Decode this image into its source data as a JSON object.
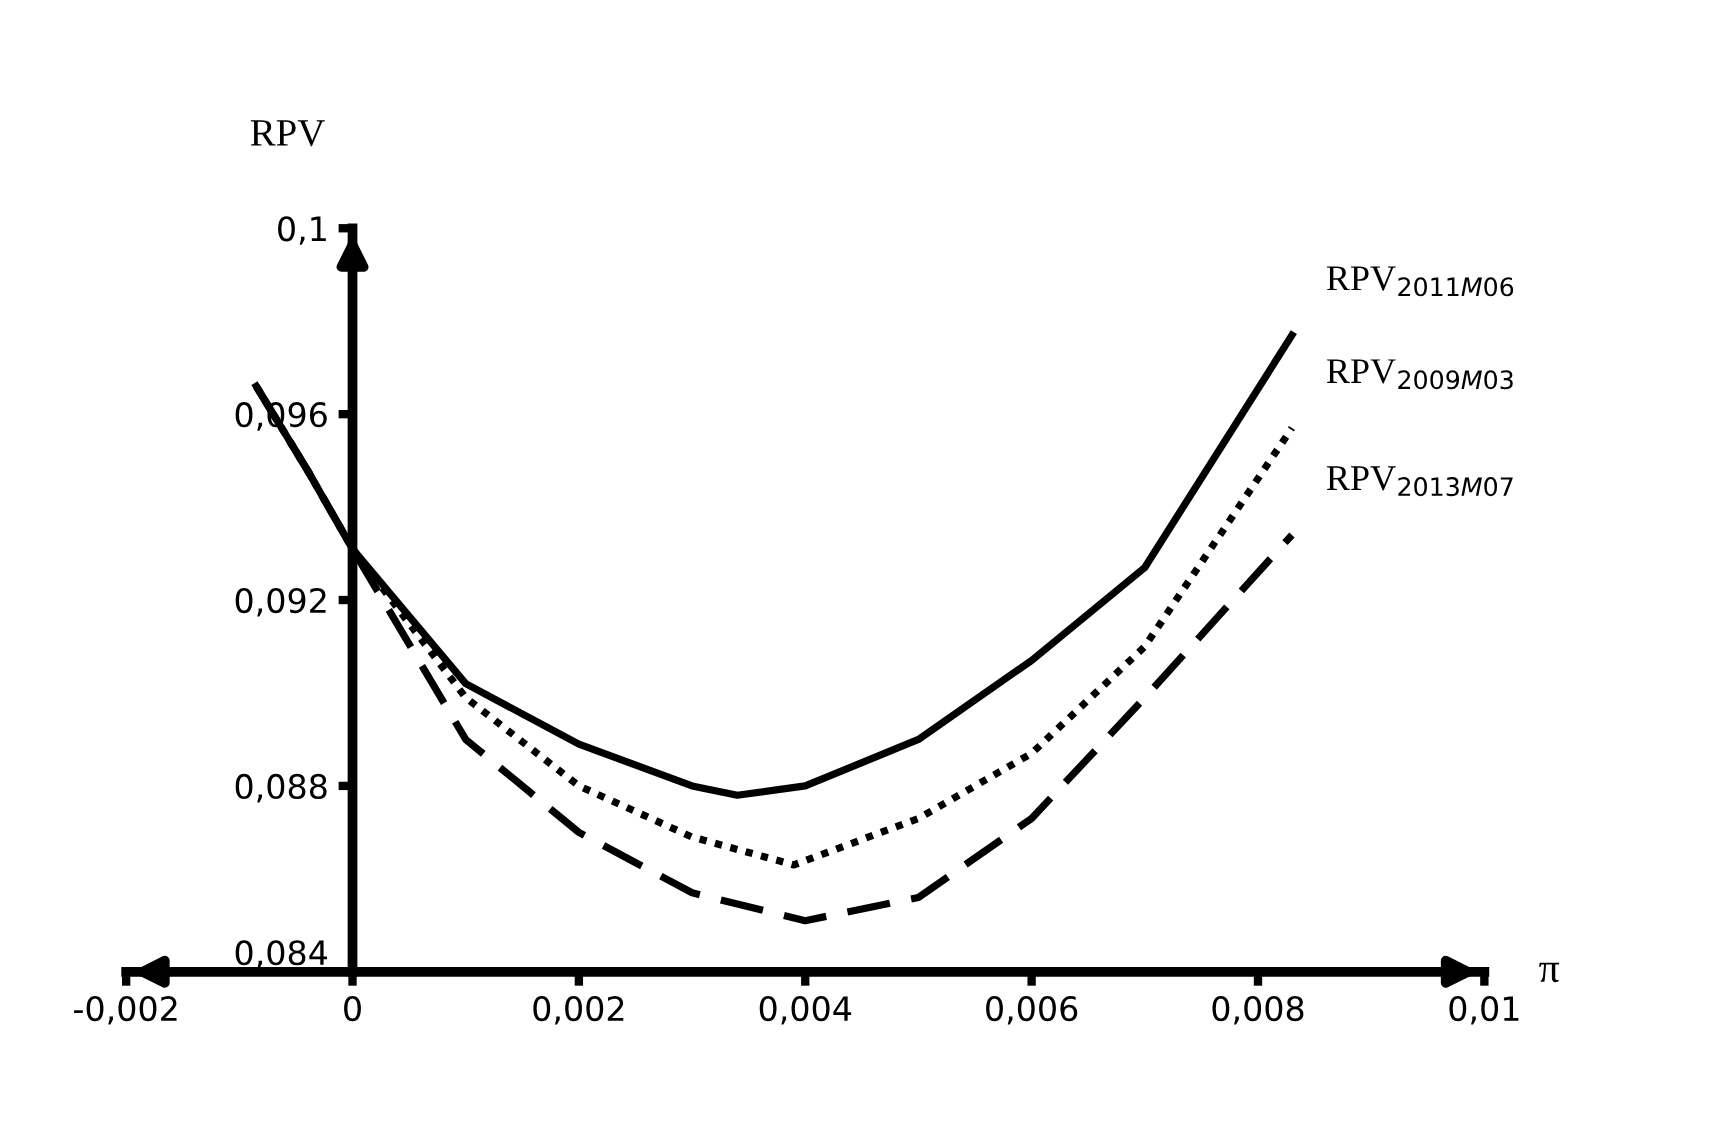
{
  "chart_data": {
    "type": "line",
    "xlabel": "π",
    "ylabel": "RPV",
    "xlim": [
      -0.002,
      0.01
    ],
    "ylim": [
      0.084,
      0.1
    ],
    "xticks": [
      {
        "value": -0.002,
        "label": "-0,002"
      },
      0,
      {
        "value": 0.002,
        "label": "0,002"
      },
      {
        "value": 0.004,
        "label": "0,004"
      },
      {
        "value": 0.006,
        "label": "0,006"
      },
      {
        "value": 0.008,
        "label": "0,008"
      },
      {
        "value": 0.01,
        "label": "0,01"
      }
    ],
    "yticks": [
      {
        "value": 0.084,
        "label": "0,084"
      },
      {
        "value": 0.088,
        "label": "0,088"
      },
      {
        "value": 0.092,
        "label": "0,092"
      },
      {
        "value": 0.096,
        "label": "0,096"
      },
      {
        "value": 0.1,
        "label": "0,1"
      }
    ],
    "grid": false,
    "legend": false,
    "marker": "none",
    "series": [
      {
        "name": "RPV$_{2011M06}$",
        "color": "#000000",
        "line_style": "solid",
        "x": [
          -0.00085,
          -0.0004,
          0,
          0.001,
          0.002,
          0.003,
          0.0034,
          0.004,
          0.005,
          0.006,
          0.007,
          0.0083
        ],
        "values": [
          0.0966,
          0.0948,
          0.0931,
          0.0902,
          0.0889,
          0.088,
          0.0878,
          0.088,
          0.089,
          0.0907,
          0.0927,
          0.0977
        ]
      },
      {
        "name": "RPV$_{2009M03}$",
        "color": "#000000",
        "line_style": "dotted",
        "x": [
          -0.00085,
          -0.0004,
          0,
          0.001,
          0.002,
          0.003,
          0.0039,
          0.005,
          0.006,
          0.007,
          0.0083
        ],
        "values": [
          0.0966,
          0.0948,
          0.0931,
          0.0899,
          0.088,
          0.0869,
          0.0863,
          0.0873,
          0.0887,
          0.091,
          0.0957
        ]
      },
      {
        "name": "RPV$_{2013M07}$",
        "color": "#000000",
        "line_style": "dashed",
        "x": [
          -0.00085,
          -0.0004,
          0,
          0.001,
          0.002,
          0.003,
          0.004,
          0.005,
          0.006,
          0.007,
          0.0083
        ],
        "values": [
          0.0966,
          0.0948,
          0.0931,
          0.089,
          0.087,
          0.0857,
          0.0851,
          0.0856,
          0.0873,
          0.0899,
          0.0934
        ]
      }
    ]
  }
}
